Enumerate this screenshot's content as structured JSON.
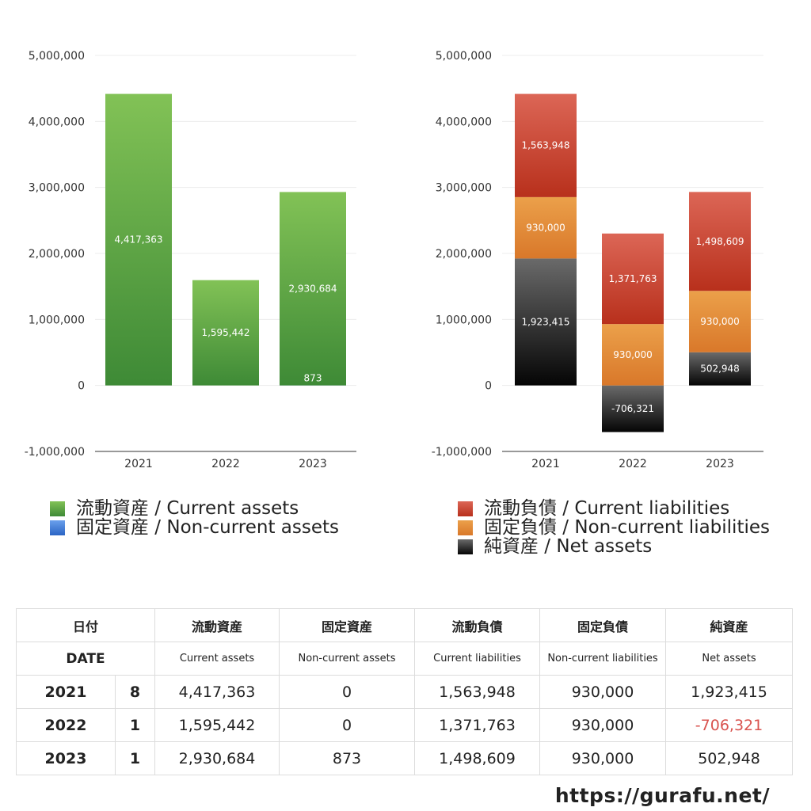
{
  "chart_data": [
    {
      "type": "bar",
      "categories": [
        "2021",
        "2022",
        "2023"
      ],
      "ylim": [
        -1000000,
        5000000
      ],
      "yticks": [
        "5,000,000",
        "4,000,000",
        "3,000,000",
        "2,000,000",
        "1,000,000",
        "0",
        "-1,000,000"
      ],
      "grid": true,
      "series": [
        {
          "name": "流動資産 / Current assets",
          "color": "#5aa83c",
          "values": [
            4417363,
            1595442,
            2930684
          ],
          "labels": [
            "4,417,363",
            "1,595,442",
            "2,930,684"
          ]
        },
        {
          "name": "固定資産 / Non-current assets",
          "color": "#3a78d6",
          "values": [
            0,
            0,
            873
          ],
          "labels": [
            "",
            "",
            "873"
          ]
        }
      ]
    },
    {
      "type": "bar",
      "stacked": true,
      "categories": [
        "2021",
        "2022",
        "2023"
      ],
      "ylim": [
        -1000000,
        5000000
      ],
      "yticks": [
        "5,000,000",
        "4,000,000",
        "3,000,000",
        "2,000,000",
        "1,000,000",
        "0",
        "-1,000,000"
      ],
      "grid": true,
      "series": [
        {
          "name": "純資産 / Net assets",
          "color": "#222222",
          "values": [
            1923415,
            -706321,
            502948
          ],
          "labels": [
            "1,923,415",
            "-706,321",
            "502,948"
          ]
        },
        {
          "name": "固定負債 / Non-current liabilities",
          "color": "#e08a30",
          "values": [
            930000,
            930000,
            930000
          ],
          "labels": [
            "930,000",
            "930,000",
            "930,000"
          ]
        },
        {
          "name": "流動負債 / Current liabilities",
          "color": "#c93a28",
          "values": [
            1563948,
            1371763,
            1498609
          ],
          "labels": [
            "1,563,948",
            "1,371,763",
            "1,498,609"
          ]
        }
      ]
    }
  ],
  "legends": {
    "left": [
      "流動資産 / Current assets",
      "固定資産 / Non-current assets"
    ],
    "right": [
      "流動負債 / Current liabilities",
      "固定負債 / Non-current liabilities",
      "純資産 / Net assets"
    ]
  },
  "table": {
    "header_jp": [
      "日付",
      "流動資産",
      "固定資産",
      "流動負債",
      "固定負債",
      "純資産"
    ],
    "header_en": [
      "DATE",
      "Current assets",
      "Non-current assets",
      "Current liabilities",
      "Non-current liabilities",
      "Net assets"
    ],
    "rows": [
      {
        "year": "2021",
        "month": "8",
        "cells": [
          "4,417,363",
          "0",
          "1,563,948",
          "930,000",
          "1,923,415"
        ]
      },
      {
        "year": "2022",
        "month": "1",
        "cells": [
          "1,595,442",
          "0",
          "1,371,763",
          "930,000",
          "-706,321"
        ]
      },
      {
        "year": "2023",
        "month": "1",
        "cells": [
          "2,930,684",
          "873",
          "1,498,609",
          "930,000",
          "502,948"
        ]
      }
    ]
  },
  "footer": "https://gurafu.net/"
}
